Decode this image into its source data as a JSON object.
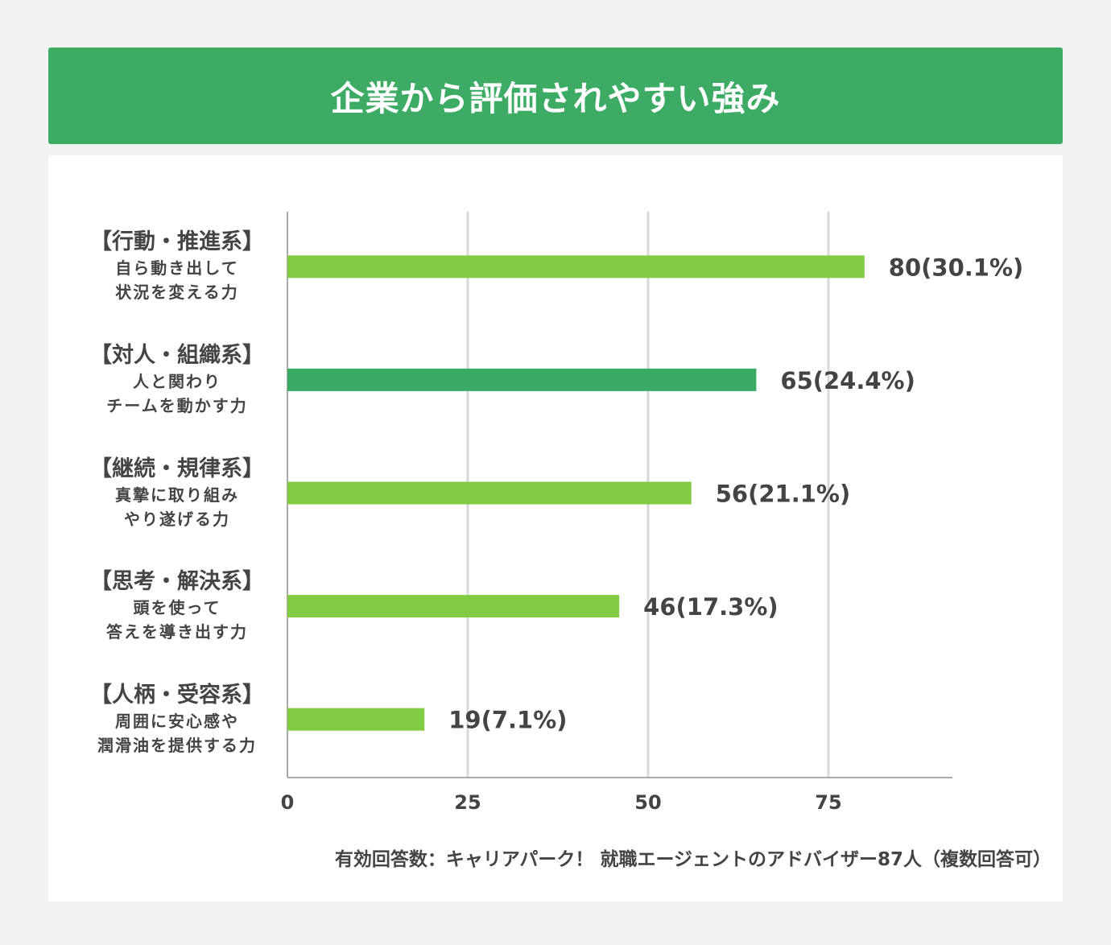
{
  "title": "企業から評価されやすい強み",
  "chart_data": {
    "type": "bar",
    "orientation": "horizontal",
    "categories": [
      {
        "title": "【行動・推進系】",
        "lines": [
          "自ら動き出して",
          "状況を変える力"
        ]
      },
      {
        "title": "【対人・組織系】",
        "lines": [
          "人と関わり",
          "チームを動かす力"
        ]
      },
      {
        "title": "【継続・規律系】",
        "lines": [
          "真摯に取り組み",
          "やり遂げる力"
        ]
      },
      {
        "title": "【思考・解決系】",
        "lines": [
          "頭を使って",
          "答えを導き出す力"
        ]
      },
      {
        "title": "【人柄・受容系】",
        "lines": [
          "周囲に安心感や",
          "潤滑油を提供する力"
        ]
      }
    ],
    "values": [
      80,
      65,
      56,
      46,
      19
    ],
    "data_labels": [
      "80(30.1%)",
      "65(24.4%)",
      "56(21.1%)",
      "46(17.3%)",
      "19(7.1%)"
    ],
    "bar_colors": [
      "#82cc44",
      "#3aaa64",
      "#82cc44",
      "#82cc44",
      "#82cc44"
    ],
    "xticks": [
      0,
      25,
      50,
      75
    ],
    "xlim": [
      0,
      92
    ],
    "grid": true,
    "title": "",
    "xlabel": "",
    "ylabel": ""
  },
  "note": "有効回答数：キャリアパーク！ 就職エージェントのアドバイザー87人（複数回答可）"
}
